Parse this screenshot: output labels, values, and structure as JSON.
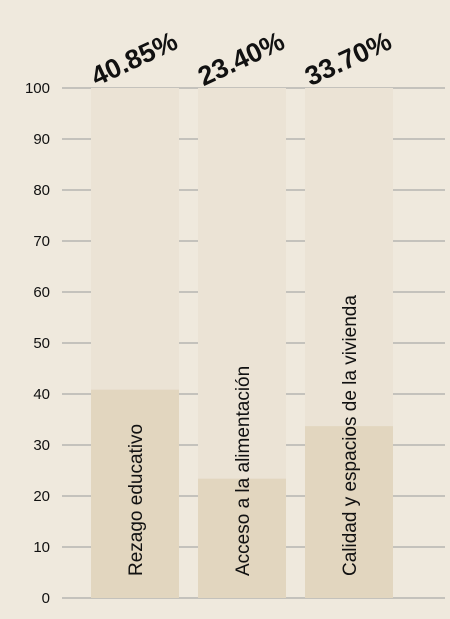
{
  "chart_data": {
    "type": "bar",
    "categories": [
      "Rezago educativo",
      "Acceso a la alimentación",
      "Calidad y espacios de la vivienda"
    ],
    "values": [
      40.85,
      23.4,
      33.7
    ],
    "value_labels": [
      "40.85%",
      "23.40%",
      "33.70%"
    ],
    "ylim": [
      0,
      100
    ],
    "yticks": [
      0,
      10,
      20,
      30,
      40,
      50,
      60,
      70,
      80,
      90,
      100
    ],
    "grid": true,
    "colors": {
      "background": "#efe9dd",
      "track": "#ebe3d5",
      "bar": "#e2d6bf",
      "grid": "#9a9a9a",
      "text": "#111111"
    }
  }
}
